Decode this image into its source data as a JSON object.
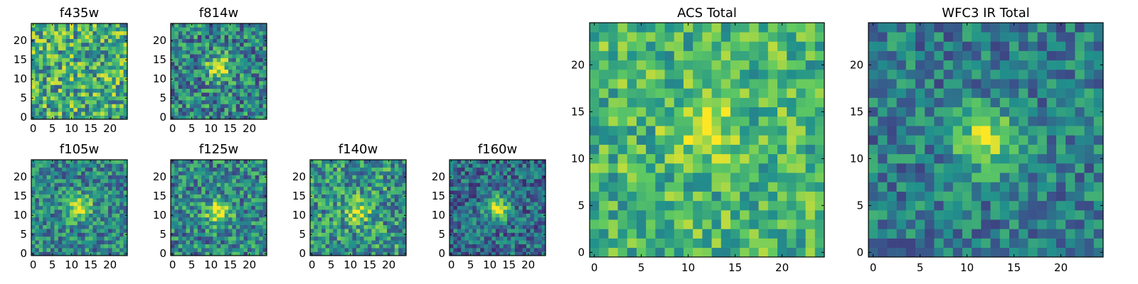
{
  "figure": {
    "colormap": [
      "#440154",
      "#3b528b",
      "#21918c",
      "#5ec962",
      "#fde725"
    ]
  },
  "chart_data": [
    {
      "type": "heatmap",
      "title": "f435w",
      "size": 25,
      "xticks": [
        0,
        5,
        10,
        15,
        20
      ],
      "yticks": [
        0,
        5,
        10,
        15,
        20
      ],
      "xlim": [
        0,
        24
      ],
      "ylim": [
        0,
        24
      ],
      "peak": null,
      "peak_strength": 0.0,
      "noise": 0.34,
      "base": 0.62,
      "seed": 11
    },
    {
      "type": "heatmap",
      "title": "f814w",
      "size": 25,
      "xticks": [
        0,
        5,
        10,
        15,
        20
      ],
      "yticks": [
        0,
        5,
        10,
        15,
        20
      ],
      "xlim": [
        0,
        24
      ],
      "ylim": [
        0,
        24
      ],
      "peak": [
        12,
        13
      ],
      "peak_strength": 0.5,
      "noise": 0.3,
      "base": 0.46,
      "seed": 23
    },
    {
      "type": "heatmap",
      "title": "f105w",
      "size": 25,
      "xticks": [
        0,
        5,
        10,
        15,
        20
      ],
      "yticks": [
        0,
        5,
        10,
        15,
        20
      ],
      "xlim": [
        0,
        24
      ],
      "ylim": [
        0,
        24
      ],
      "peak": [
        12,
        12
      ],
      "peak_strength": 0.5,
      "noise": 0.26,
      "base": 0.46,
      "seed": 37
    },
    {
      "type": "heatmap",
      "title": "f125w",
      "size": 25,
      "xticks": [
        0,
        5,
        10,
        15,
        20
      ],
      "yticks": [
        0,
        5,
        10,
        15,
        20
      ],
      "xlim": [
        0,
        24
      ],
      "ylim": [
        0,
        24
      ],
      "peak": [
        12,
        11
      ],
      "peak_strength": 0.5,
      "noise": 0.28,
      "base": 0.46,
      "seed": 41
    },
    {
      "type": "heatmap",
      "title": "f140w",
      "size": 25,
      "xticks": [
        0,
        5,
        10,
        15,
        20
      ],
      "yticks": [
        0,
        5,
        10,
        15,
        20
      ],
      "xlim": [
        0,
        24
      ],
      "ylim": [
        0,
        24
      ],
      "peak": [
        12,
        11
      ],
      "peak_strength": 0.4,
      "noise": 0.3,
      "base": 0.52,
      "seed": 53
    },
    {
      "type": "heatmap",
      "title": "f160w",
      "size": 25,
      "xticks": [
        0,
        5,
        10,
        15,
        20
      ],
      "yticks": [
        0,
        5,
        10,
        15,
        20
      ],
      "xlim": [
        0,
        24
      ],
      "ylim": [
        0,
        24
      ],
      "peak": [
        12,
        12
      ],
      "peak_strength": 0.55,
      "noise": 0.24,
      "base": 0.36,
      "seed": 67
    },
    {
      "type": "heatmap",
      "title": "ACS Total",
      "size": 25,
      "xticks": [
        0,
        5,
        10,
        15,
        20
      ],
      "yticks": [
        0,
        5,
        10,
        15,
        20
      ],
      "xlim": [
        0,
        24
      ],
      "ylim": [
        0,
        24
      ],
      "peak": [
        12,
        13
      ],
      "peak_strength": 0.3,
      "noise": 0.24,
      "base": 0.66,
      "seed": 79
    },
    {
      "type": "heatmap",
      "title": "WFC3 IR Total",
      "size": 25,
      "xticks": [
        0,
        5,
        10,
        15,
        20
      ],
      "yticks": [
        0,
        5,
        10,
        15,
        20
      ],
      "xlim": [
        0,
        24
      ],
      "ylim": [
        0,
        24
      ],
      "peak": [
        12,
        12
      ],
      "peak_strength": 0.5,
      "noise": 0.22,
      "base": 0.42,
      "seed": 97
    }
  ]
}
